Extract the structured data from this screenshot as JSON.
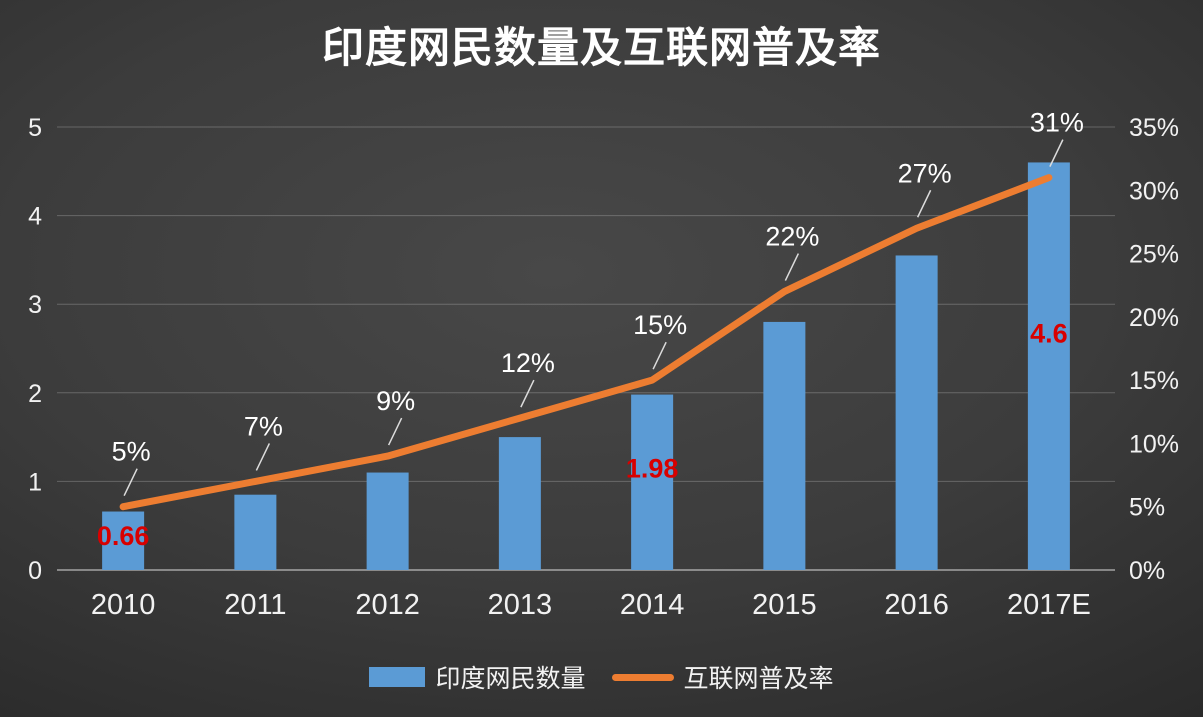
{
  "title": "印度网民数量及互联网普及率",
  "chart_data": {
    "type": "bar+line",
    "categories": [
      "2010",
      "2011",
      "2012",
      "2013",
      "2014",
      "2015",
      "2016",
      "2017E"
    ],
    "series": [
      {
        "name": "印度网民数量",
        "type": "bar",
        "axis": "left",
        "color": "#5b9bd5",
        "values": [
          0.66,
          0.85,
          1.1,
          1.5,
          1.98,
          2.8,
          3.55,
          4.6
        ]
      },
      {
        "name": "互联网普及率",
        "type": "line",
        "axis": "right",
        "color": "#ed7d31",
        "values": [
          5,
          7,
          9,
          12,
          15,
          22,
          27,
          31
        ],
        "point_labels": [
          "5%",
          "7%",
          "9%",
          "12%",
          "15%",
          "22%",
          "27%",
          "31%"
        ]
      }
    ],
    "left_axis": {
      "min": 0,
      "max": 5,
      "ticks": [
        "0",
        "1",
        "2",
        "3",
        "4",
        "5"
      ]
    },
    "right_axis": {
      "min": 0,
      "max": 35,
      "ticks": [
        "0%",
        "5%",
        "10%",
        "15%",
        "20%",
        "25%",
        "30%",
        "35%"
      ]
    },
    "bar_value_labels": [
      {
        "index": 0,
        "text": "0.66"
      },
      {
        "index": 4,
        "text": "1.98"
      },
      {
        "index": 7,
        "text": "4.6"
      }
    ],
    "bar_label_color": "#d80000",
    "grid": true,
    "legend_position": "bottom"
  },
  "legend": {
    "items": [
      {
        "label": "印度网民数量",
        "color": "#5b9bd5",
        "marker": "bar"
      },
      {
        "label": "互联网普及率",
        "color": "#ed7d31",
        "marker": "line"
      }
    ]
  },
  "colors": {
    "text": "#f2f2f2",
    "gridline": "rgba(255,255,255,0.22)",
    "baseline": "rgba(255,255,255,0.55)",
    "leader": "#dcdcdc"
  }
}
